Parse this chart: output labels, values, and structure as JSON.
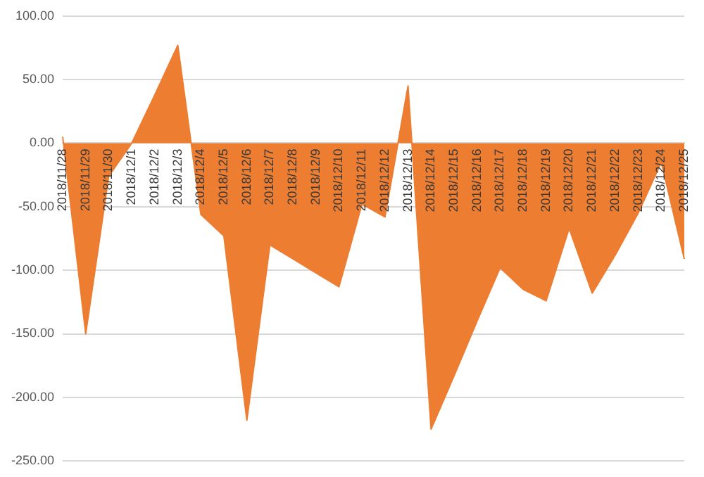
{
  "chart_data": {
    "type": "area",
    "categories": [
      "2018/11/28",
      "2018/11/29",
      "2018/11/30",
      "2018/12/1",
      "2018/12/2",
      "2018/12/3",
      "2018/12/4",
      "2018/12/5",
      "2018/12/6",
      "2018/12/7",
      "2018/12/8",
      "2018/12/9",
      "2018/12/10",
      "2018/12/11",
      "2018/12/12",
      "2018/12/13",
      "2018/12/14",
      "2018/12/15",
      "2018/12/16",
      "2018/12/17",
      "2018/12/18",
      "2018/12/19",
      "2018/12/20",
      "2018/12/21",
      "2018/12/22",
      "2018/12/23",
      "2018/12/24",
      "2018/12/25"
    ],
    "series": [
      {
        "color": "#ed7d31",
        "values": [
          5,
          -150,
          -26,
          0,
          38,
          77,
          -56,
          -73,
          -218,
          -80,
          -91,
          -102,
          -113,
          -48,
          -58,
          45,
          -225,
          -183,
          -140,
          -98,
          -115,
          -124,
          -67,
          -118,
          -88,
          -55,
          -15,
          -91
        ]
      }
    ],
    "ylim": [
      -250,
      100
    ],
    "yticks": [
      {
        "value": -250,
        "label": "-250.00"
      },
      {
        "value": -200,
        "label": "-200.00"
      },
      {
        "value": -150,
        "label": "-150.00"
      },
      {
        "value": -100,
        "label": "-100.00"
      },
      {
        "value": -50,
        "label": "-50.00"
      },
      {
        "value": 0,
        "label": "0.00"
      },
      {
        "value": 50,
        "label": "50.00"
      },
      {
        "value": 100,
        "label": "100.00"
      }
    ],
    "grid": "y",
    "legend": false
  }
}
